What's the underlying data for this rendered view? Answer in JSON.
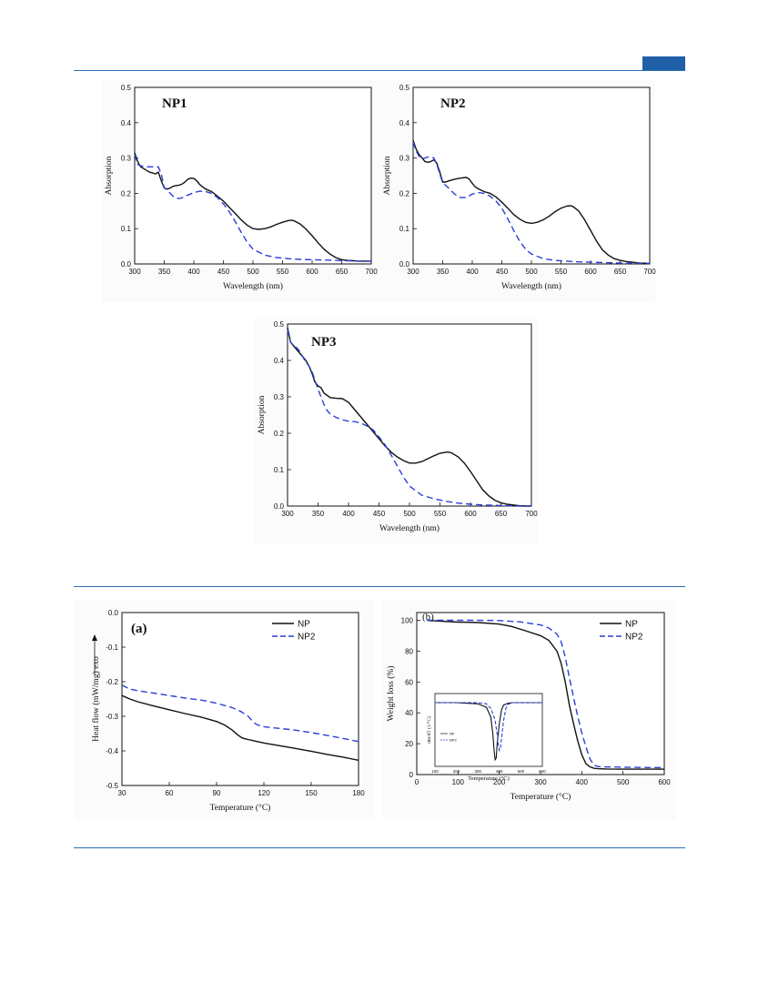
{
  "colors": {
    "rule": "#2b6cb3",
    "series_solid": "#111111",
    "series_dashed": "#2a3fd6"
  },
  "chart_data": [
    {
      "id": "np1",
      "type": "line",
      "panel_label": "NP1",
      "xlabel": "Wavelength (nm)",
      "ylabel": "Absorption",
      "xlim": [
        300,
        700
      ],
      "ylim": [
        0,
        0.5
      ],
      "xticks": [
        300,
        350,
        400,
        450,
        500,
        550,
        600,
        650,
        700
      ],
      "yticks": [
        0.0,
        0.1,
        0.2,
        0.3,
        0.4,
        0.5
      ],
      "series": [
        {
          "style": "solid",
          "x": [
            300,
            305,
            310,
            315,
            320,
            325,
            330,
            335,
            340,
            345,
            350,
            355,
            360,
            365,
            370,
            375,
            380,
            385,
            390,
            395,
            400,
            405,
            410,
            415,
            420,
            430,
            440,
            450,
            460,
            470,
            480,
            490,
            500,
            510,
            520,
            530,
            540,
            550,
            560,
            565,
            570,
            580,
            590,
            600,
            610,
            620,
            630,
            640,
            650,
            660,
            670,
            680,
            690,
            700
          ],
          "y": [
            0.315,
            0.29,
            0.275,
            0.27,
            0.265,
            0.26,
            0.258,
            0.255,
            0.26,
            0.235,
            0.215,
            0.212,
            0.215,
            0.22,
            0.222,
            0.223,
            0.226,
            0.232,
            0.24,
            0.243,
            0.242,
            0.235,
            0.225,
            0.218,
            0.212,
            0.205,
            0.192,
            0.178,
            0.16,
            0.143,
            0.125,
            0.11,
            0.1,
            0.098,
            0.1,
            0.105,
            0.112,
            0.118,
            0.123,
            0.124,
            0.122,
            0.113,
            0.098,
            0.08,
            0.06,
            0.042,
            0.028,
            0.018,
            0.012,
            0.01,
            0.009,
            0.008,
            0.008,
            0.008
          ]
        },
        {
          "style": "dashed",
          "x": [
            300,
            305,
            310,
            315,
            320,
            330,
            340,
            345,
            350,
            355,
            360,
            365,
            370,
            375,
            380,
            390,
            400,
            410,
            420,
            430,
            440,
            450,
            460,
            470,
            480,
            490,
            500,
            520,
            540,
            560,
            580,
            600,
            620,
            640,
            660,
            680,
            700
          ],
          "y": [
            0.31,
            0.282,
            0.278,
            0.276,
            0.275,
            0.275,
            0.275,
            0.255,
            0.215,
            0.21,
            0.2,
            0.192,
            0.187,
            0.185,
            0.187,
            0.195,
            0.202,
            0.206,
            0.205,
            0.2,
            0.188,
            0.17,
            0.148,
            0.12,
            0.09,
            0.062,
            0.042,
            0.025,
            0.018,
            0.015,
            0.013,
            0.012,
            0.011,
            0.01,
            0.009,
            0.008,
            0.008
          ]
        }
      ]
    },
    {
      "id": "np2",
      "type": "line",
      "panel_label": "NP2",
      "xlabel": "Wavelength (nm)",
      "ylabel": "Absorption",
      "xlim": [
        300,
        700
      ],
      "ylim": [
        0,
        0.5
      ],
      "xticks": [
        300,
        350,
        400,
        450,
        500,
        550,
        600,
        650,
        700
      ],
      "yticks": [
        0.0,
        0.1,
        0.2,
        0.3,
        0.4,
        0.5
      ],
      "series": [
        {
          "style": "solid",
          "x": [
            300,
            305,
            310,
            315,
            320,
            325,
            330,
            335,
            340,
            345,
            350,
            355,
            360,
            370,
            380,
            390,
            395,
            400,
            405,
            410,
            420,
            430,
            440,
            450,
            460,
            470,
            480,
            490,
            500,
            510,
            520,
            530,
            540,
            550,
            560,
            565,
            570,
            580,
            590,
            600,
            610,
            620,
            630,
            640,
            650,
            660,
            670,
            680,
            690,
            700
          ],
          "y": [
            0.35,
            0.325,
            0.31,
            0.3,
            0.29,
            0.288,
            0.29,
            0.295,
            0.285,
            0.26,
            0.232,
            0.232,
            0.235,
            0.24,
            0.243,
            0.245,
            0.24,
            0.228,
            0.218,
            0.213,
            0.205,
            0.2,
            0.19,
            0.175,
            0.158,
            0.14,
            0.127,
            0.118,
            0.115,
            0.118,
            0.125,
            0.135,
            0.148,
            0.158,
            0.164,
            0.165,
            0.163,
            0.15,
            0.125,
            0.095,
            0.065,
            0.04,
            0.025,
            0.015,
            0.01,
            0.007,
            0.005,
            0.003,
            0.002,
            0.002
          ]
        },
        {
          "style": "dashed",
          "x": [
            300,
            305,
            310,
            315,
            320,
            325,
            330,
            335,
            340,
            345,
            350,
            360,
            370,
            380,
            390,
            400,
            410,
            420,
            430,
            440,
            450,
            460,
            470,
            480,
            490,
            500,
            520,
            540,
            560,
            580,
            600,
            620,
            640,
            660,
            680,
            700
          ],
          "y": [
            0.345,
            0.32,
            0.305,
            0.298,
            0.3,
            0.303,
            0.303,
            0.3,
            0.282,
            0.255,
            0.23,
            0.215,
            0.198,
            0.188,
            0.188,
            0.198,
            0.202,
            0.2,
            0.192,
            0.178,
            0.158,
            0.128,
            0.095,
            0.065,
            0.042,
            0.028,
            0.015,
            0.01,
            0.008,
            0.006,
            0.005,
            0.004,
            0.003,
            0.002,
            0.002,
            0.002
          ]
        }
      ]
    },
    {
      "id": "np3",
      "type": "line",
      "panel_label": "NP3",
      "xlabel": "Wavelength (nm)",
      "ylabel": "Absorption",
      "xlim": [
        300,
        700
      ],
      "ylim": [
        0,
        0.5
      ],
      "xticks": [
        300,
        350,
        400,
        450,
        500,
        550,
        600,
        650,
        700
      ],
      "yticks": [
        0.0,
        0.1,
        0.2,
        0.3,
        0.4,
        0.5
      ],
      "series": [
        {
          "style": "solid",
          "x": [
            300,
            305,
            310,
            315,
            320,
            325,
            330,
            335,
            340,
            345,
            350,
            355,
            360,
            370,
            380,
            390,
            400,
            410,
            420,
            430,
            440,
            450,
            460,
            470,
            480,
            490,
            500,
            510,
            520,
            530,
            540,
            550,
            560,
            565,
            570,
            580,
            590,
            600,
            610,
            620,
            630,
            640,
            650,
            660,
            670,
            680,
            690,
            700
          ],
          "y": [
            0.49,
            0.45,
            0.44,
            0.43,
            0.42,
            0.41,
            0.4,
            0.385,
            0.365,
            0.34,
            0.33,
            0.325,
            0.31,
            0.298,
            0.296,
            0.295,
            0.285,
            0.265,
            0.245,
            0.225,
            0.205,
            0.185,
            0.165,
            0.148,
            0.135,
            0.125,
            0.118,
            0.118,
            0.122,
            0.13,
            0.138,
            0.145,
            0.148,
            0.148,
            0.145,
            0.135,
            0.118,
            0.095,
            0.07,
            0.045,
            0.028,
            0.016,
            0.009,
            0.005,
            0.003,
            0.001,
            0.0,
            0.0
          ]
        },
        {
          "style": "dashed",
          "x": [
            300,
            305,
            310,
            315,
            320,
            325,
            330,
            335,
            340,
            345,
            350,
            355,
            360,
            365,
            370,
            380,
            390,
            400,
            410,
            420,
            430,
            440,
            450,
            460,
            470,
            480,
            490,
            500,
            520,
            540,
            560,
            580,
            600,
            620,
            640,
            660,
            680,
            700
          ],
          "y": [
            0.485,
            0.45,
            0.44,
            0.435,
            0.425,
            0.41,
            0.395,
            0.385,
            0.37,
            0.345,
            0.32,
            0.3,
            0.278,
            0.262,
            0.253,
            0.243,
            0.237,
            0.233,
            0.232,
            0.228,
            0.22,
            0.21,
            0.19,
            0.168,
            0.14,
            0.11,
            0.08,
            0.055,
            0.03,
            0.02,
            0.013,
            0.008,
            0.005,
            0.003,
            0.002,
            0.001,
            0.0,
            0.0
          ]
        }
      ]
    },
    {
      "id": "dsc",
      "type": "line",
      "panel_label": "(a)",
      "xlabel": "Temperature (°C)",
      "ylabel": "Heat flow (mW/mg) exo",
      "xlim": [
        30,
        180
      ],
      "ylim": [
        -0.5,
        0.0
      ],
      "xticks": [
        30,
        60,
        90,
        120,
        150,
        180
      ],
      "yticks": [
        0.0,
        -0.1,
        -0.2,
        -0.3,
        -0.4,
        -0.5
      ],
      "legend": [
        "NP",
        "NP2"
      ],
      "series": [
        {
          "name": "NP",
          "style": "solid",
          "x": [
            30,
            35,
            40,
            50,
            60,
            70,
            80,
            90,
            95,
            100,
            103,
            106,
            108,
            110,
            115,
            120,
            130,
            140,
            150,
            160,
            170,
            180
          ],
          "y": [
            -0.24,
            -0.25,
            -0.258,
            -0.27,
            -0.281,
            -0.292,
            -0.302,
            -0.315,
            -0.325,
            -0.34,
            -0.352,
            -0.362,
            -0.365,
            -0.367,
            -0.372,
            -0.377,
            -0.385,
            -0.393,
            -0.401,
            -0.41,
            -0.418,
            -0.427
          ]
        },
        {
          "name": "NP2",
          "style": "dashed",
          "x": [
            30,
            35,
            40,
            50,
            60,
            70,
            80,
            90,
            100,
            105,
            110,
            113,
            115,
            118,
            120,
            125,
            130,
            140,
            150,
            160,
            170,
            180
          ],
          "y": [
            -0.21,
            -0.221,
            -0.226,
            -0.233,
            -0.24,
            -0.247,
            -0.253,
            -0.262,
            -0.275,
            -0.285,
            -0.3,
            -0.315,
            -0.323,
            -0.328,
            -0.33,
            -0.333,
            -0.335,
            -0.34,
            -0.347,
            -0.355,
            -0.364,
            -0.373
          ]
        }
      ]
    },
    {
      "id": "tga",
      "type": "line",
      "panel_label": "(b)",
      "xlabel": "Temperature (°C)",
      "ylabel": "Weight loss (%)",
      "xlim": [
        0,
        600
      ],
      "ylim": [
        0,
        105
      ],
      "xticks": [
        0,
        100,
        200,
        300,
        400,
        500,
        600
      ],
      "yticks": [
        0,
        20,
        40,
        60,
        80,
        100
      ],
      "legend": [
        "NP",
        "NP2"
      ],
      "series": [
        {
          "name": "NP",
          "style": "solid",
          "x": [
            25,
            50,
            100,
            150,
            200,
            230,
            260,
            300,
            320,
            340,
            350,
            360,
            370,
            380,
            390,
            400,
            410,
            420,
            430,
            440,
            460,
            500,
            550,
            600
          ],
          "y": [
            100,
            99.5,
            98.8,
            98.5,
            97.5,
            96,
            93.5,
            90,
            87,
            80,
            72,
            60,
            45,
            33,
            22,
            13,
            7,
            5,
            4,
            3.8,
            3.6,
            3.5,
            3.5,
            3.5
          ]
        },
        {
          "name": "NP2",
          "style": "dashed",
          "x": [
            25,
            50,
            100,
            150,
            200,
            250,
            300,
            320,
            340,
            350,
            360,
            370,
            380,
            390,
            400,
            410,
            420,
            430,
            440,
            450,
            500,
            550,
            600
          ],
          "y": [
            100,
            100,
            100,
            100,
            99.8,
            99,
            97,
            95,
            91,
            86,
            76,
            63,
            50,
            38,
            27,
            18,
            10,
            6,
            5.2,
            5,
            4.8,
            4.6,
            4.5
          ]
        }
      ],
      "inset": {
        "xlabel": "Temperature (°C)",
        "ylabel": "dm/dT (1/°C)",
        "xlim": [
          100,
          600
        ],
        "xticks": [
          100,
          200,
          300,
          400,
          500,
          600
        ],
        "legend": [
          "NP",
          "NP2"
        ],
        "series": [
          {
            "name": "NP",
            "style": "solid",
            "x": [
              100,
              200,
              300,
              340,
              360,
              370,
              375,
              380,
              385,
              390,
              400,
              410,
              420,
              440,
              460,
              500,
              600
            ],
            "y": [
              0.0,
              0.0,
              -0.02,
              -0.08,
              -0.25,
              -0.55,
              -0.8,
              -0.98,
              -0.95,
              -0.7,
              -0.35,
              -0.12,
              -0.04,
              -0.01,
              0.0,
              0.0,
              0.0
            ]
          },
          {
            "name": "NP2",
            "style": "dashed",
            "x": [
              100,
              200,
              300,
              340,
              360,
              380,
              390,
              395,
              400,
              405,
              410,
              420,
              430,
              440,
              460,
              500,
              600
            ],
            "y": [
              0.0,
              0.0,
              0.0,
              -0.02,
              -0.1,
              -0.3,
              -0.55,
              -0.72,
              -0.82,
              -0.78,
              -0.6,
              -0.3,
              -0.1,
              -0.03,
              0.0,
              0.0,
              0.0
            ]
          }
        ]
      }
    }
  ]
}
